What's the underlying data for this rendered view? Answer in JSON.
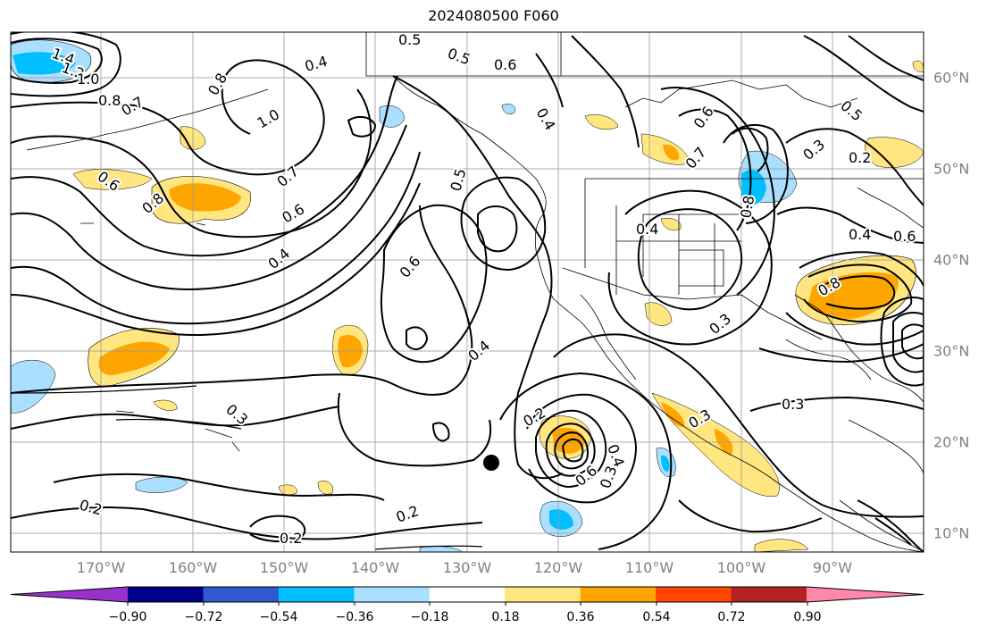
{
  "title": "2024080500 F060",
  "map": {
    "lon_labels": [
      "170°W",
      "160°W",
      "150°W",
      "140°W",
      "130°W",
      "120°W",
      "110°W",
      "100°W",
      "90°W"
    ],
    "lat_labels": [
      "60°N",
      "50°N",
      "40°N",
      "30°N",
      "20°N",
      "10°N"
    ],
    "contour_labels": [
      "1.4",
      "1.2",
      "1.0",
      "0.8",
      "0.7",
      "1.0",
      "0.8",
      "0.6",
      "0.8",
      "0.7",
      "0.6",
      "0.4",
      "0.4",
      "0.5",
      "0.5",
      "0.6",
      "0.4",
      "0.6",
      "0.7",
      "0.5",
      "0.4",
      "0.6",
      "0.8",
      "0.4",
      "0.3",
      "0.2",
      "0.3",
      "0.4",
      "0.3",
      "0.3",
      "0.2",
      "0.3",
      "0.2",
      "0.2",
      "0.2",
      "0.4",
      "0.6",
      "0.3",
      "0.8",
      "0.6",
      "0.5"
    ]
  },
  "colorbar": {
    "ticks": [
      "−0.90",
      "−0.72",
      "−0.54",
      "−0.36",
      "−0.18",
      "0.18",
      "0.36",
      "0.54",
      "0.72",
      "0.90"
    ],
    "colors": [
      "#9932cc",
      "#00008b",
      "#3158cc",
      "#00bfff",
      "#aadfff",
      "#ffffff",
      "#ffe680",
      "#ffa500",
      "#ff4500",
      "#b22222",
      "#ff88aa"
    ]
  }
}
